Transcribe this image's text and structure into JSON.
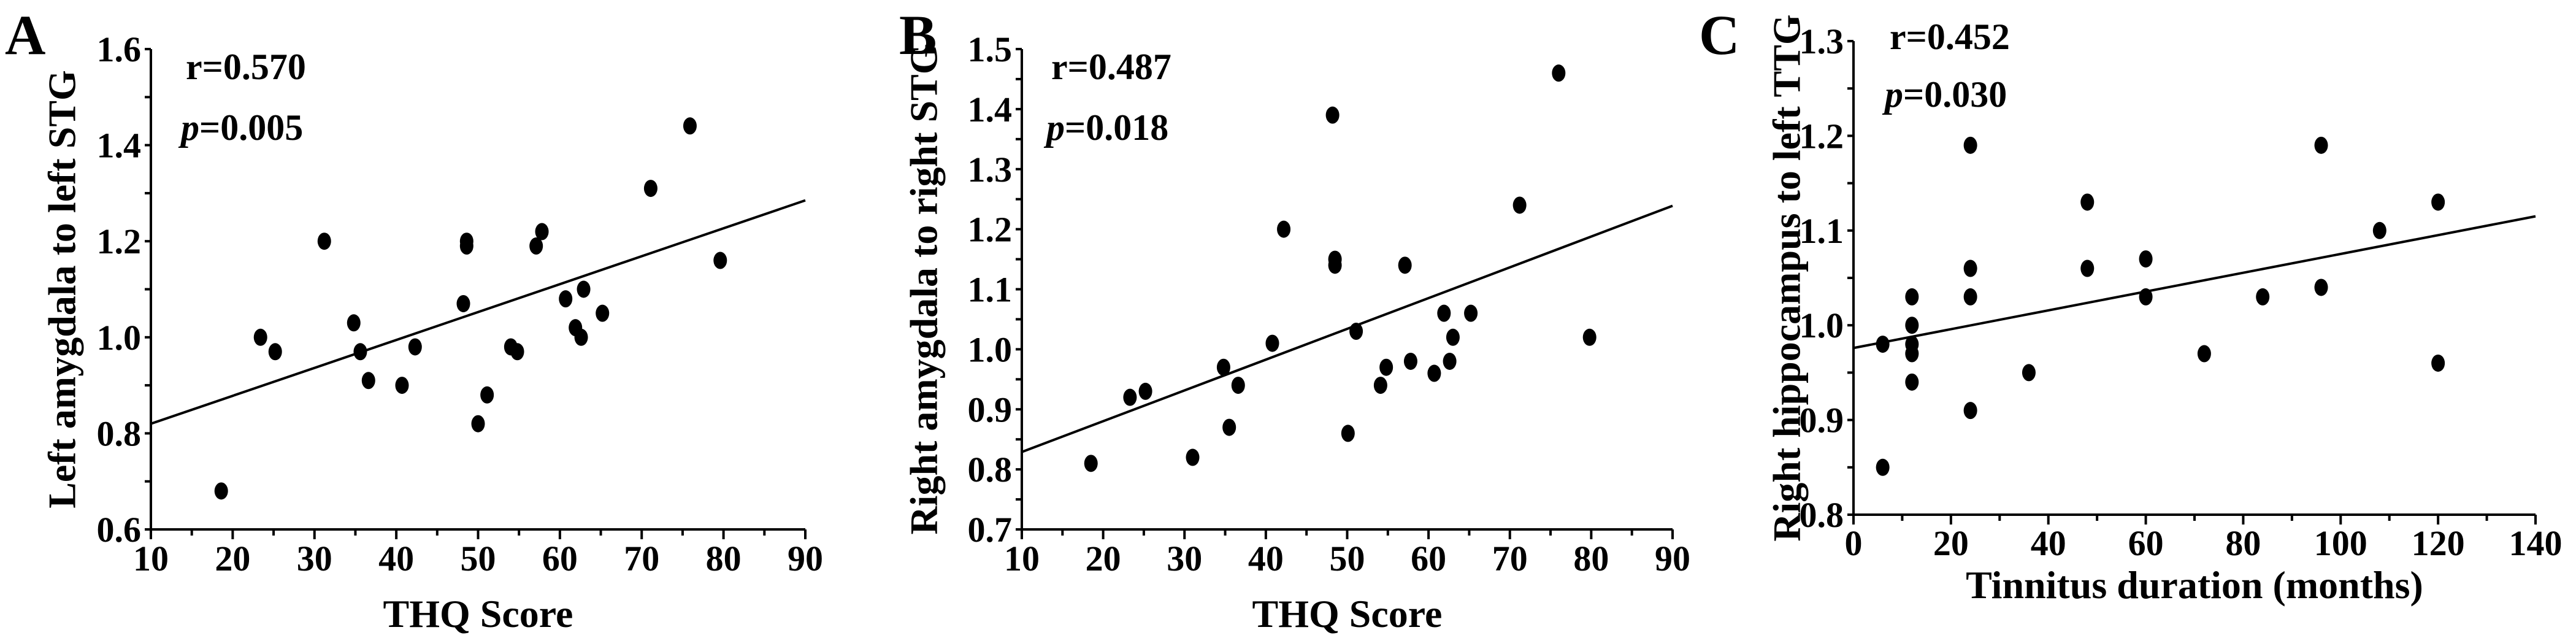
{
  "chart_data": [
    {
      "type": "scatter",
      "panel_label": "A",
      "xlabel": "THQ Score",
      "ylabel": "Left amygdala to left STG",
      "xlim": [
        10,
        90
      ],
      "ylim": [
        0.6,
        1.6
      ],
      "xticks": [
        "10",
        "20",
        "30",
        "40",
        "50",
        "60",
        "70",
        "80",
        "90"
      ],
      "yticks": [
        "0.6",
        "0.8",
        "1.0",
        "1.2",
        "1.4",
        "1.6"
      ],
      "x_minor_step": 5,
      "y_minor_step": 0.1,
      "grid": false,
      "stats": {
        "r_label": "r=0.570",
        "p_italic": "p",
        "p_value": "=0.005"
      },
      "fit_line": [
        [
          10,
          0.82
        ],
        [
          90,
          1.285
        ]
      ],
      "points": [
        [
          18.6,
          0.68
        ],
        [
          23.4,
          1.0
        ],
        [
          25.2,
          0.97
        ],
        [
          31.2,
          1.2
        ],
        [
          34.8,
          1.03
        ],
        [
          35.6,
          0.97
        ],
        [
          36.6,
          0.91
        ],
        [
          40.7,
          0.9
        ],
        [
          42.3,
          0.98
        ],
        [
          48.2,
          1.07
        ],
        [
          48.6,
          1.2
        ],
        [
          48.6,
          1.19
        ],
        [
          50.0,
          0.82
        ],
        [
          51.1,
          0.88
        ],
        [
          54.0,
          0.98
        ],
        [
          54.8,
          0.97
        ],
        [
          57.1,
          1.19
        ],
        [
          57.8,
          1.22
        ],
        [
          60.7,
          1.08
        ],
        [
          61.9,
          1.02
        ],
        [
          62.6,
          1.0
        ],
        [
          62.9,
          1.1
        ],
        [
          65.2,
          1.05
        ],
        [
          71.1,
          1.31
        ],
        [
          75.9,
          1.44
        ],
        [
          79.6,
          1.16
        ]
      ]
    },
    {
      "type": "scatter",
      "panel_label": "B",
      "xlabel": "THQ Score",
      "ylabel": "Right amygdala to right STG",
      "xlim": [
        10,
        90
      ],
      "ylim": [
        0.7,
        1.5
      ],
      "xticks": [
        "10",
        "20",
        "30",
        "40",
        "50",
        "60",
        "70",
        "80",
        "90"
      ],
      "yticks": [
        "0.7",
        "0.8",
        "0.9",
        "1.0",
        "1.1",
        "1.2",
        "1.3",
        "1.4",
        "1.5"
      ],
      "x_minor_step": 5,
      "y_minor_step": 0.05,
      "grid": false,
      "stats": {
        "r_label": "r=0.487",
        "p_italic": "p",
        "p_value": "=0.018"
      },
      "fit_line": [
        [
          10,
          0.829
        ],
        [
          90,
          1.239
        ]
      ],
      "points": [
        [
          18.5,
          0.81
        ],
        [
          23.3,
          0.92
        ],
        [
          25.2,
          0.93
        ],
        [
          31.0,
          0.82
        ],
        [
          34.8,
          0.97
        ],
        [
          35.5,
          0.87
        ],
        [
          36.6,
          0.94
        ],
        [
          40.8,
          1.01
        ],
        [
          42.2,
          1.2
        ],
        [
          48.2,
          1.39
        ],
        [
          48.5,
          1.15
        ],
        [
          48.5,
          1.14
        ],
        [
          50.1,
          0.86
        ],
        [
          51.1,
          1.03
        ],
        [
          54.1,
          0.94
        ],
        [
          54.8,
          0.97
        ],
        [
          57.1,
          1.14
        ],
        [
          57.8,
          0.98
        ],
        [
          60.7,
          0.96
        ],
        [
          61.9,
          1.06
        ],
        [
          62.6,
          0.98
        ],
        [
          63.0,
          1.02
        ],
        [
          65.2,
          1.06
        ],
        [
          71.2,
          1.24
        ],
        [
          76.0,
          1.46
        ],
        [
          79.8,
          1.02
        ]
      ]
    },
    {
      "type": "scatter",
      "panel_label": "C",
      "xlabel": "Tinnitus duration (months)",
      "ylabel": "Right hippocampus to left TTG",
      "xlim": [
        0,
        140
      ],
      "ylim": [
        0.8,
        1.3
      ],
      "xticks": [
        "0",
        "20",
        "40",
        "60",
        "80",
        "100",
        "120",
        "140"
      ],
      "yticks": [
        "0.8",
        "0.9",
        "1.0",
        "1.1",
        "1.2",
        "1.3"
      ],
      "x_minor_step": 10,
      "y_minor_step": 0.05,
      "grid": false,
      "stats": {
        "r_label": "r=0.452",
        "p_italic": "p",
        "p_value": "=0.030"
      },
      "fit_line": [
        [
          0,
          0.976
        ],
        [
          140,
          1.115
        ]
      ],
      "points": [
        [
          6,
          0.98
        ],
        [
          6,
          0.85
        ],
        [
          12,
          1.03
        ],
        [
          12,
          1.0
        ],
        [
          12,
          0.98
        ],
        [
          12,
          0.97
        ],
        [
          12,
          0.94
        ],
        [
          24,
          1.19
        ],
        [
          24,
          1.06
        ],
        [
          24,
          1.03
        ],
        [
          24,
          0.91
        ],
        [
          36,
          0.95
        ],
        [
          48,
          1.13
        ],
        [
          48,
          1.06
        ],
        [
          60,
          1.07
        ],
        [
          60,
          1.03
        ],
        [
          72,
          0.97
        ],
        [
          84,
          1.03
        ],
        [
          96,
          1.19
        ],
        [
          96,
          1.04
        ],
        [
          108,
          1.1
        ],
        [
          120,
          1.13
        ],
        [
          120,
          0.96
        ]
      ]
    }
  ]
}
